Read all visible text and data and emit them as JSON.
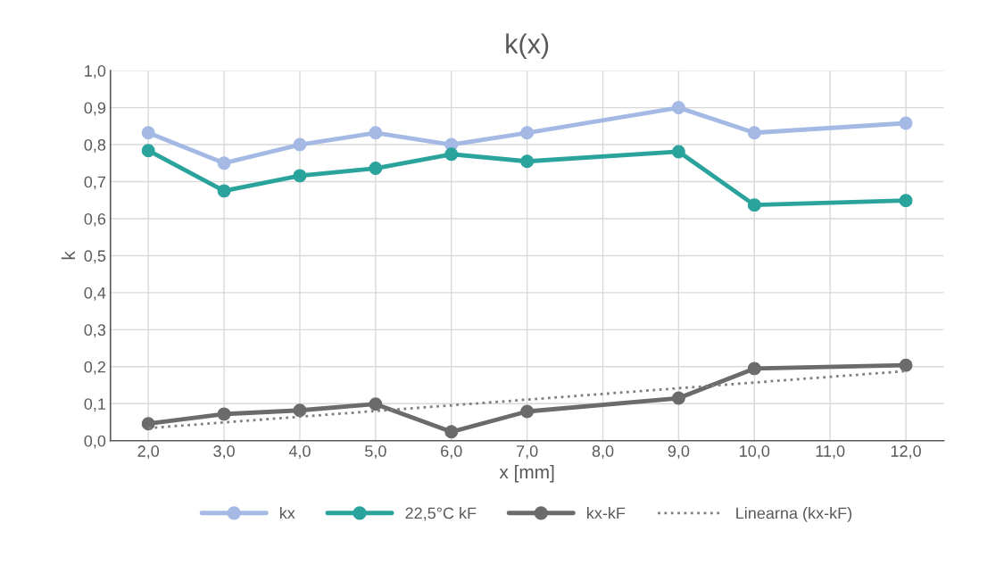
{
  "chart_data": {
    "type": "line",
    "title": "k(x)",
    "xlabel": "x [mm]",
    "ylabel": "k",
    "x": [
      2,
      3,
      4,
      5,
      6,
      7,
      9,
      10,
      12
    ],
    "series": [
      {
        "name": "kx",
        "color": "#a4b9e4",
        "values": [
          0.832,
          0.75,
          0.8,
          0.832,
          0.8,
          0.832,
          0.9,
          0.832,
          0.858
        ]
      },
      {
        "name": "22,5°C kF",
        "color": "#2aa39d",
        "values": [
          0.784,
          0.675,
          0.716,
          0.736,
          0.774,
          0.755,
          0.781,
          0.637,
          0.649
        ]
      },
      {
        "name": "kx-kF",
        "color": "#6b6b6b",
        "values": [
          0.046,
          0.072,
          0.082,
          0.099,
          0.024,
          0.079,
          0.115,
          0.195,
          0.204
        ]
      },
      {
        "name": "Linearna (kx-kF)",
        "color": "#7f7f7f",
        "type": "line",
        "x": [
          2,
          12
        ],
        "values": [
          0.034,
          0.188
        ],
        "marker": "none",
        "line_style": "dotted"
      }
    ],
    "marker": "circle",
    "line_style": "solid",
    "xlim": [
      1.5,
      12.5
    ],
    "xticks": [
      {
        "value": 2,
        "label": "2,0"
      },
      {
        "value": 3,
        "label": "3,0"
      },
      {
        "value": 4,
        "label": "4,0"
      },
      {
        "value": 5,
        "label": "5,0"
      },
      {
        "value": 6,
        "label": "6,0"
      },
      {
        "value": 7,
        "label": "7,0"
      },
      {
        "value": 8,
        "label": "8,0"
      },
      {
        "value": 9,
        "label": "9,0"
      },
      {
        "value": 10,
        "label": "10,0"
      },
      {
        "value": 11,
        "label": "11,0"
      },
      {
        "value": 12,
        "label": "12,0"
      }
    ],
    "ylim": [
      0,
      1
    ],
    "yticks": [
      {
        "value": 0,
        "label": "0,0"
      },
      {
        "value": 0.1,
        "label": "0,1"
      },
      {
        "value": 0.2,
        "label": "0,2"
      },
      {
        "value": 0.3,
        "label": "0,3"
      },
      {
        "value": 0.4,
        "label": "0,4"
      },
      {
        "value": 0.5,
        "label": "0,5"
      },
      {
        "value": 0.6,
        "label": "0,6"
      },
      {
        "value": 0.7,
        "label": "0,7"
      },
      {
        "value": 0.8,
        "label": "0,8"
      },
      {
        "value": 0.9,
        "label": "0,9"
      },
      {
        "value": 1,
        "label": "1,0"
      }
    ],
    "grid": true,
    "legend": "bottom"
  }
}
